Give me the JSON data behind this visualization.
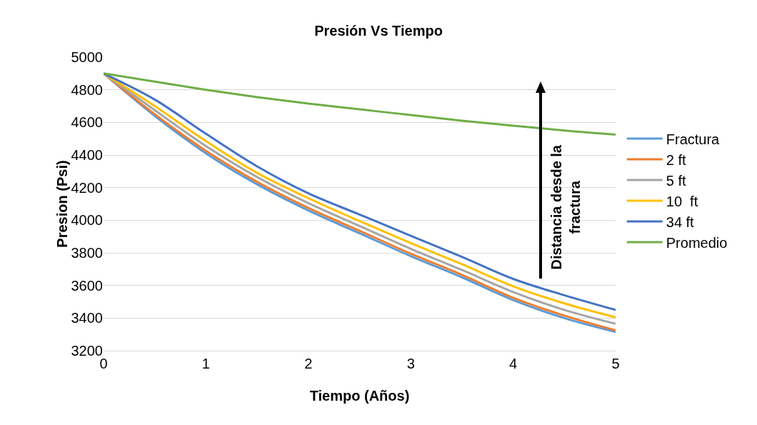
{
  "chart_data": {
    "type": "line",
    "title": "Presión Vs Tiempo",
    "xlabel": "Tiempo (Años)",
    "ylabel": "Presion (Psi)",
    "x": [
      0,
      0.5,
      1,
      1.5,
      2,
      2.5,
      3,
      3.5,
      4,
      4.5,
      5
    ],
    "series": [
      {
        "name": "Fractura",
        "color": "#5b9bd5",
        "values": [
          4900,
          4640,
          4410,
          4220,
          4060,
          3920,
          3780,
          3650,
          3510,
          3400,
          3315
        ]
      },
      {
        "name": "2 ft",
        "color": "#ed7d31",
        "values": [
          4900,
          4650,
          4425,
          4235,
          4075,
          3935,
          3795,
          3665,
          3525,
          3415,
          3325
        ]
      },
      {
        "name": "5 ft",
        "color": "#a5a5a5",
        "values": [
          4900,
          4675,
          4455,
          4265,
          4105,
          3965,
          3825,
          3695,
          3560,
          3450,
          3365
        ]
      },
      {
        "name": "10  ft",
        "color": "#ffc000",
        "values": [
          4900,
          4700,
          4485,
          4290,
          4135,
          3995,
          3860,
          3730,
          3595,
          3490,
          3405
        ]
      },
      {
        "name": "34 ft",
        "color": "#4472c4",
        "values": [
          4900,
          4740,
          4530,
          4330,
          4165,
          4035,
          3905,
          3775,
          3640,
          3540,
          3450
        ]
      },
      {
        "name": "Promedio",
        "color": "#70ad47",
        "values": [
          4900,
          4850,
          4800,
          4755,
          4715,
          4680,
          4645,
          4610,
          4580,
          4550,
          4525
        ]
      }
    ],
    "annotations": [
      "Distancia desde la fractura"
    ],
    "xlim": [
      0,
      5
    ],
    "xticks": [
      0,
      1,
      2,
      3,
      4,
      5
    ],
    "ylim": [
      3200,
      5000
    ],
    "yticks": [
      3200,
      3400,
      3600,
      3800,
      4000,
      4200,
      4400,
      4600,
      4800,
      5000
    ],
    "grid": "y",
    "legend": "right",
    "marker": "none",
    "line_style": "solid"
  }
}
